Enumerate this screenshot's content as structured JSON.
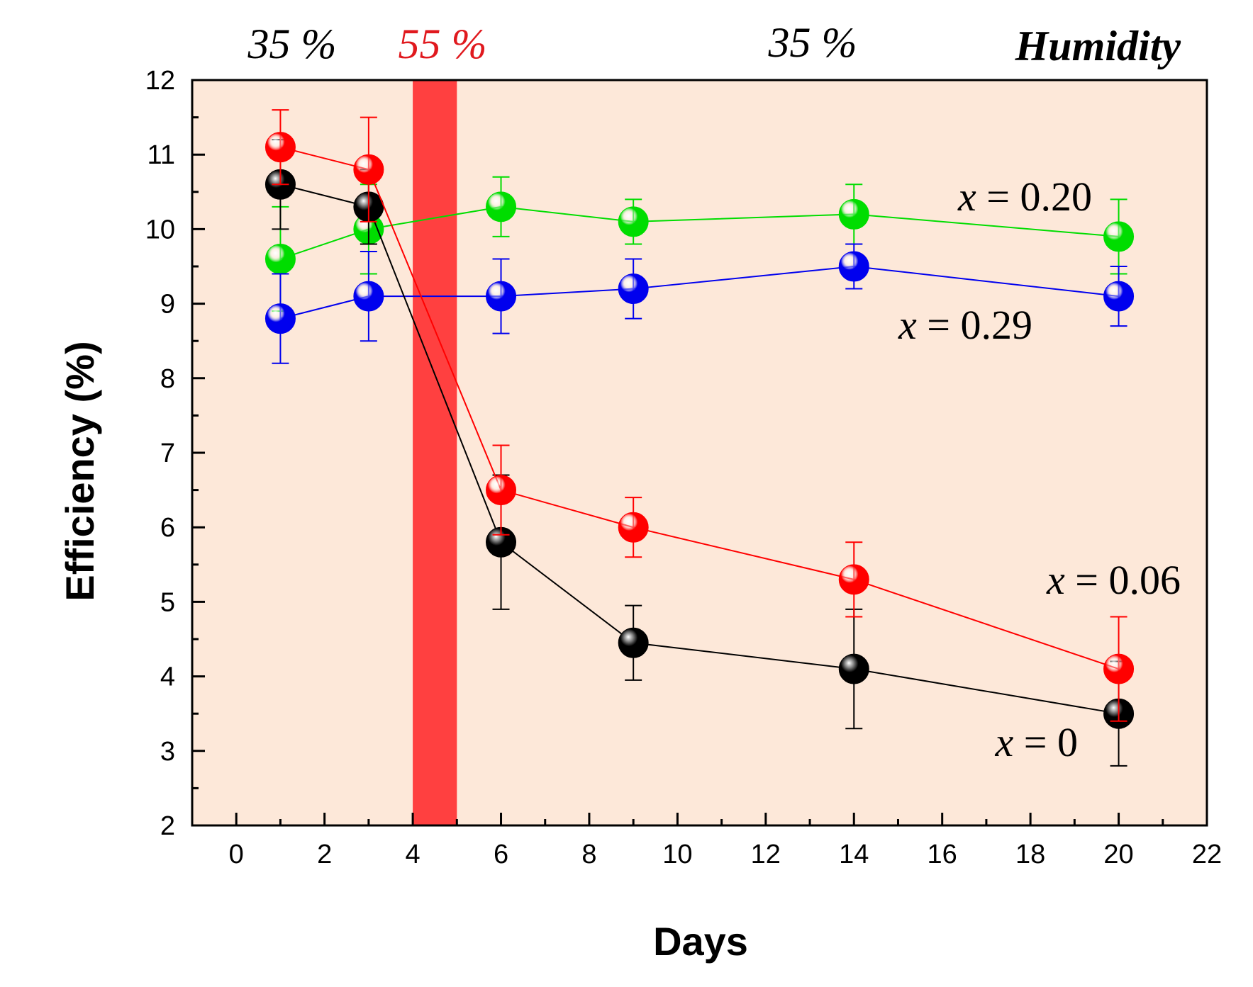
{
  "chart_data": {
    "type": "scatter",
    "title": "",
    "xlabel": "Days",
    "ylabel": "Efficiency (%)",
    "xlim": [
      -1,
      22
    ],
    "ylim": [
      2,
      12
    ],
    "xticks": [
      "0",
      "2",
      "4",
      "6",
      "8",
      "10",
      "12",
      "14",
      "16",
      "18",
      "20",
      "22"
    ],
    "yticks": [
      "2",
      "3",
      "4",
      "5",
      "6",
      "7",
      "8",
      "9",
      "10",
      "11",
      "12"
    ],
    "background_color": "#fde8d9",
    "humidity_band": {
      "x_start": 4,
      "x_end": 5,
      "color": "#ff4040"
    },
    "humidity_labels": [
      {
        "text": "35 %",
        "color": "#000000"
      },
      {
        "text": "55 %",
        "color": "#e0191e"
      },
      {
        "text": "35 %",
        "color": "#000000"
      },
      {
        "text": "Humidity",
        "color": "#000000"
      }
    ],
    "series": [
      {
        "name": "x = 0",
        "label_var": "x",
        "label_rest": " = 0",
        "color": "#000000",
        "x": [
          1,
          3,
          6,
          9,
          14,
          20
        ],
        "y": [
          10.6,
          10.3,
          5.8,
          4.45,
          4.1,
          3.5
        ],
        "err": [
          0.6,
          0.5,
          0.9,
          0.5,
          0.8,
          0.7
        ]
      },
      {
        "name": "x = 0.06",
        "label_var": "x",
        "label_rest": " = 0.06",
        "color": "#ff0000",
        "x": [
          1,
          3,
          6,
          9,
          14,
          20
        ],
        "y": [
          11.1,
          10.8,
          6.5,
          6.0,
          5.3,
          4.1
        ],
        "err": [
          0.5,
          0.7,
          0.6,
          0.4,
          0.5,
          0.7
        ]
      },
      {
        "name": "x = 0.20",
        "label_var": "x",
        "label_rest": " = 0.20",
        "color": "#00dd00",
        "x": [
          1,
          3,
          6,
          9,
          14,
          20
        ],
        "y": [
          9.6,
          10.0,
          10.3,
          10.1,
          10.2,
          9.9
        ],
        "err": [
          0.7,
          0.6,
          0.4,
          0.3,
          0.4,
          0.5
        ]
      },
      {
        "name": "x = 0.29",
        "label_var": "x",
        "label_rest": " = 0.29",
        "color": "#0000ee",
        "x": [
          1,
          3,
          6,
          9,
          14,
          20
        ],
        "y": [
          8.8,
          9.1,
          9.1,
          9.2,
          9.5,
          9.1
        ],
        "err": [
          0.6,
          0.6,
          0.5,
          0.4,
          0.3,
          0.4
        ]
      }
    ]
  }
}
